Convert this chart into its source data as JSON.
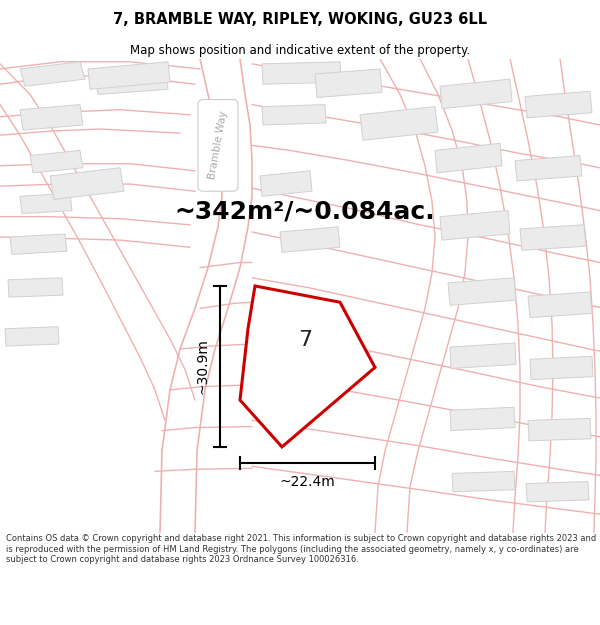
{
  "title_line1": "7, BRAMBLE WAY, RIPLEY, WOKING, GU23 6LL",
  "title_line2": "Map shows position and indicative extent of the property.",
  "area_text": "~342m²/~0.084ac.",
  "label_7": "7",
  "dim_height": "~30.9m",
  "dim_width": "~22.4m",
  "road_label": "Bramble Way",
  "footer_text": "Contains OS data © Crown copyright and database right 2021. This information is subject to Crown copyright and database rights 2023 and is reproduced with the permission of HM Land Registry. The polygons (including the associated geometry, namely x, y co-ordinates) are subject to Crown copyright and database rights 2023 Ordnance Survey 100026316.",
  "bg_color": "#ffffff",
  "map_bg": "#ffffff",
  "plot_fill": "#ffffff",
  "plot_stroke": "#cc0000",
  "road_stroke": "#f0b0b0",
  "building_fill": "#ebebeb",
  "building_stroke": "#d0d0d0",
  "dim_color": "#000000",
  "title_color": "#000000",
  "area_color": "#000000",
  "footer_color": "#333333",
  "road_label_color": "#aaaaaa"
}
